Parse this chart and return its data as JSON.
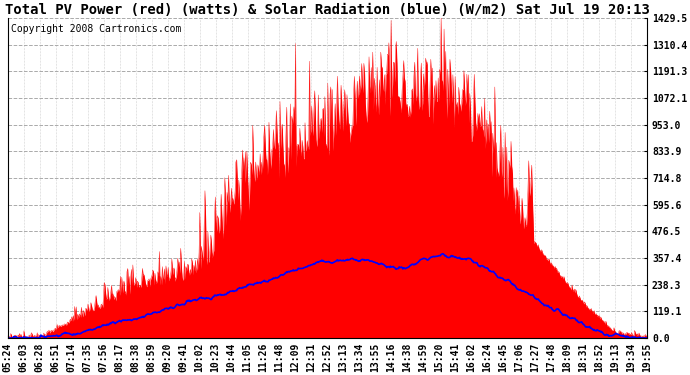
{
  "title": "Total PV Power (red) (watts) & Solar Radiation (blue) (W/m2) Sat Jul 19 20:13",
  "copyright": "Copyright 2008 Cartronics.com",
  "ylim": [
    0.0,
    1429.5
  ],
  "yticks": [
    0.0,
    119.1,
    238.3,
    357.4,
    476.5,
    595.6,
    714.8,
    833.9,
    953.0,
    1072.1,
    1191.3,
    1310.4,
    1429.5
  ],
  "xtick_labels": [
    "05:24",
    "06:03",
    "06:28",
    "06:51",
    "07:14",
    "07:35",
    "07:56",
    "08:17",
    "08:38",
    "08:59",
    "09:20",
    "09:41",
    "10:02",
    "10:23",
    "10:44",
    "11:05",
    "11:26",
    "11:48",
    "12:09",
    "12:31",
    "12:52",
    "13:13",
    "13:34",
    "13:55",
    "14:16",
    "14:38",
    "14:59",
    "15:20",
    "15:41",
    "16:02",
    "16:24",
    "16:45",
    "17:06",
    "17:27",
    "17:48",
    "18:09",
    "18:31",
    "18:52",
    "19:13",
    "19:34",
    "19:55"
  ],
  "n_points": 870,
  "n_ticks": 41,
  "background_color": "#ffffff",
  "plot_bg_color": "#ffffff",
  "grid_color": "#aaaaaa",
  "red_fill_color": "#ff0000",
  "blue_line_color": "#0000ff",
  "title_fontsize": 10,
  "tick_fontsize": 7,
  "copyright_fontsize": 7
}
